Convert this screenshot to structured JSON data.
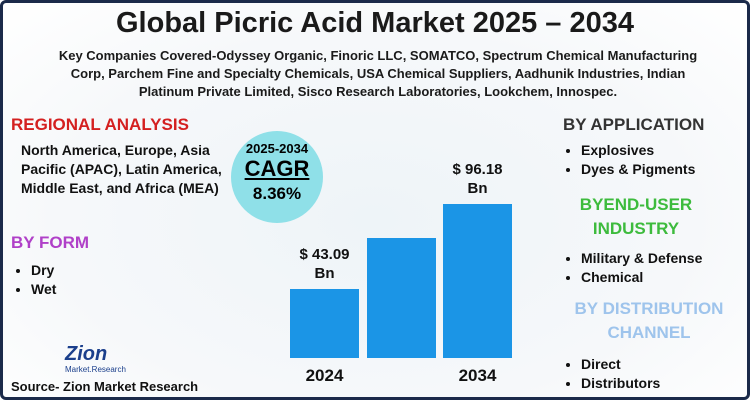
{
  "title": "Global Picric Acid Market 2025 – 2034",
  "subtitle": "Key Companies Covered-Odyssey Organic, Finoric LLC, SOMATCO, Spectrum Chemical Manufacturing Corp, Parchem Fine and Specialty Chemicals, USA Chemical Suppliers, Aadhunik Industries, Indian Platinum Private Limited, Sisco Research Laboratories, Lookchem, Innospec.",
  "regional": {
    "heading": "REGIONAL ANALYSIS",
    "text": "North America, Europe, Asia Pacific (APAC), Latin America, Middle East, and Africa (MEA)"
  },
  "form": {
    "heading": "BY FORM",
    "items": [
      "Dry",
      "Wet"
    ]
  },
  "cagr": {
    "period": "2025-2034",
    "label": "CAGR",
    "value": "8.36%"
  },
  "application": {
    "heading": "BY APPLICATION",
    "items": [
      "Explosives",
      "Dyes & Pigments"
    ]
  },
  "end_user": {
    "heading": "BYEND-USER INDUSTRY",
    "items": [
      "Military & Defense",
      "Chemical"
    ]
  },
  "distribution": {
    "heading": "BY DISTRIBUTION CHANNEL",
    "items": [
      "Direct",
      "Distributors"
    ]
  },
  "logo": {
    "name": "Zion",
    "tagline": "Market.Research"
  },
  "source": "Source- Zion Market Research",
  "chart_data": {
    "type": "bar",
    "categories": [
      "2024",
      null,
      "2034"
    ],
    "values": [
      43.09,
      75,
      96.18
    ],
    "value_labels": [
      "$ 43.09 Bn",
      null,
      "$ 96.18 Bn"
    ],
    "ylim": [
      0,
      100
    ],
    "color": "#1b95e6"
  }
}
